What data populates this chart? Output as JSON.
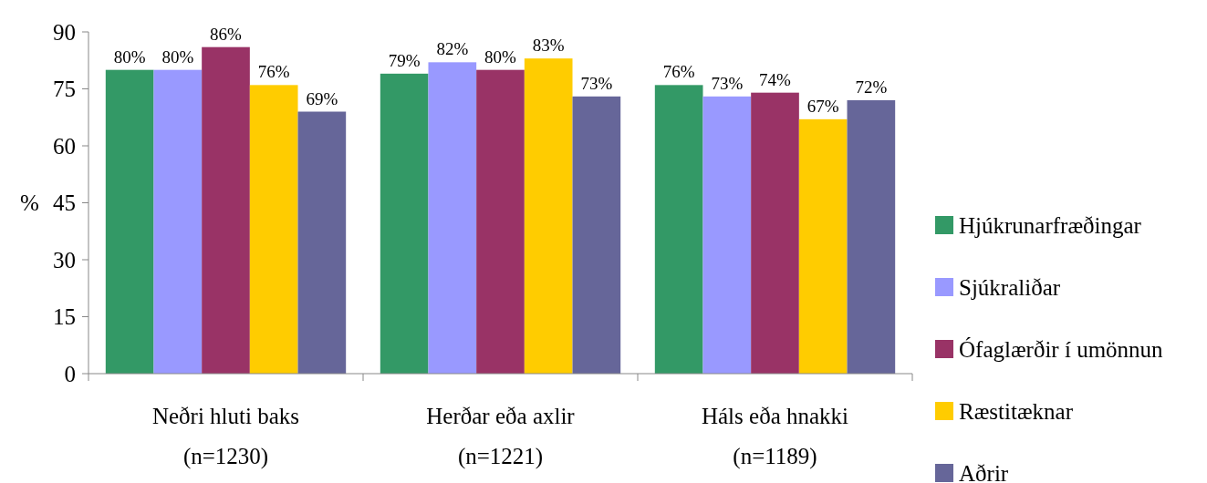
{
  "chart_data": {
    "type": "bar",
    "ylabel": "%",
    "categories": [
      "Neðri hluti baks\n(n=1230)",
      "Herðar eða axlir\n(n=1221)",
      "Háls eða hnakki\n(n=1189)"
    ],
    "series": [
      {
        "name": "Hjúkrunarfræðingar",
        "color": "#339966",
        "values": [
          80,
          79,
          76
        ],
        "value_labels": [
          "80%",
          "79%",
          "76%"
        ]
      },
      {
        "name": "Sjúkraliðar",
        "color": "#9999ff",
        "values": [
          80,
          82,
          73
        ],
        "value_labels": [
          "80%",
          "82%",
          "73%"
        ]
      },
      {
        "name": "Ófaglærðir í umönnun",
        "color": "#993366",
        "values": [
          86,
          80,
          74
        ],
        "value_labels": [
          "86%",
          "80%",
          "74%"
        ]
      },
      {
        "name": "Ræstitæknar",
        "color": "#ffcc00",
        "values": [
          76,
          83,
          67
        ],
        "value_labels": [
          "76%",
          "83%",
          "67%"
        ]
      },
      {
        "name": "Aðrir",
        "color": "#666699",
        "values": [
          69,
          73,
          72
        ],
        "value_labels": [
          "69%",
          "73%",
          "72%"
        ]
      }
    ],
    "ylim": [
      0,
      90
    ],
    "yticks": [
      0,
      15,
      30,
      45,
      60,
      75,
      90
    ],
    "grid": false,
    "legend": "right"
  }
}
